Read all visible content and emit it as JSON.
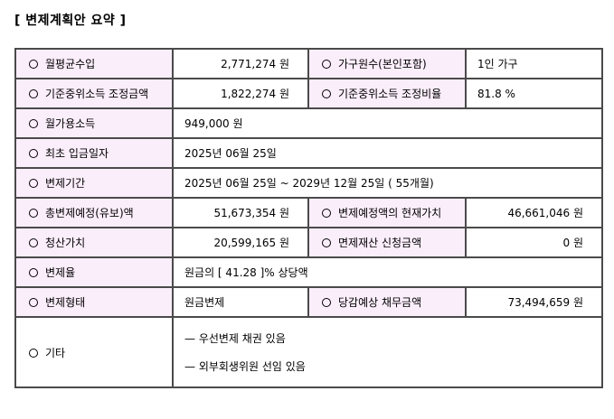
{
  "title": "[ 변제계획안 요약 ]",
  "rows": {
    "avg_income": {
      "label": "월평균수입",
      "value": "2,771,274 원"
    },
    "household": {
      "label": "가구원수(본인포함)",
      "value": "1인 가구"
    },
    "adj_amount": {
      "label": "기준중위소득 조정금액",
      "value": "1,822,274 원"
    },
    "adj_ratio": {
      "label": "기준중위소득 조정비율",
      "value": "81.8 %"
    },
    "disposable": {
      "label": "월가용소득",
      "value": "949,000 원"
    },
    "first_payment": {
      "label": "최초 입금일자",
      "value": "2025년 06월 25일"
    },
    "period": {
      "label": "변제기간",
      "value": "2025년 06월 25일 ~ 2029년 12월 25일 ( 55개월)"
    },
    "total_planned": {
      "label": "총변제예정(유보)액",
      "value": "51,673,354 원"
    },
    "present_value": {
      "label": "변제예정액의 현재가치",
      "value": "46,661,046 원"
    },
    "liquidation": {
      "label": "청산가치",
      "value": "20,599,165 원"
    },
    "exempt": {
      "label": "면제재산 신청금액",
      "value": "0 원"
    },
    "rate": {
      "label": "변제율",
      "value": "원금의 [ 41.28 ]% 상당액"
    },
    "type": {
      "label": "변제형태",
      "value": "원금변제"
    },
    "expected_debt": {
      "label": "당감예상 채무금액",
      "value": "73,494,659 원"
    },
    "etc": {
      "label": "기타",
      "items": [
        "— 우선변제 채권 있음",
        "— 외부회생위원 선임 있음"
      ]
    }
  }
}
